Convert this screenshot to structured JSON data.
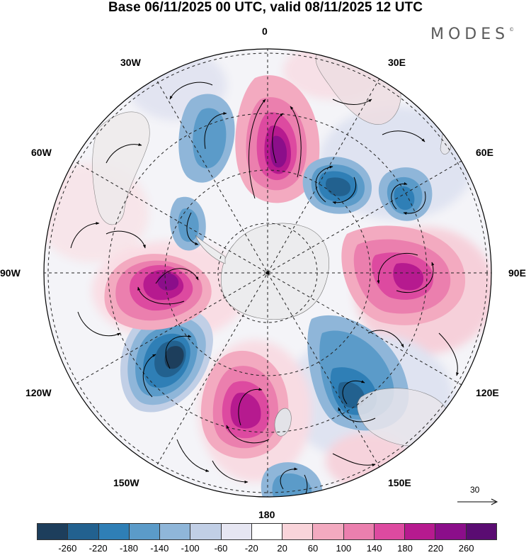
{
  "title": "Base 06/11/2025 00 UTC, valid 08/11/2025 12 UTC",
  "logo": {
    "text": "MODES",
    "mark": "©"
  },
  "longitude_labels": {
    "n0": "0",
    "n30e": "30E",
    "n60e": "60E",
    "e90": "90E",
    "n120e": "120E",
    "n150e": "150E",
    "s180": "180",
    "n150w": "150W",
    "n120w": "120W",
    "w90": "90W",
    "n60w": "60W",
    "n30w": "30W"
  },
  "reference_vector": {
    "label": "30"
  },
  "colorbar": {
    "colors": [
      "#1d3e5c",
      "#22618f",
      "#2f7fb6",
      "#5b9bc9",
      "#8fb6d9",
      "#c1cfe6",
      "#e6e6f2",
      "#ffffff",
      "#f9d4da",
      "#f3aac0",
      "#eb7fae",
      "#dd4aa0",
      "#b61a8f",
      "#8b0e8a",
      "#5a0c72"
    ],
    "tick_labels": [
      "-260",
      "-220",
      "-180",
      "-140",
      "-100",
      "-60",
      "-20",
      "20",
      "60",
      "100",
      "140",
      "180",
      "220",
      "260"
    ]
  },
  "map": {
    "projection": "south polar stereographic",
    "field": "geopotential height anomaly with wind vectors",
    "anomaly_centers": [
      {
        "name": "south-atlantic-positive",
        "value": 250
      },
      {
        "name": "indian-negative-1",
        "value": -230
      },
      {
        "name": "indian-negative-2",
        "value": -170
      },
      {
        "name": "indian-positive",
        "value": 190
      },
      {
        "name": "australia-negative",
        "value": -200
      },
      {
        "name": "pacific-positive",
        "value": 210
      },
      {
        "name": "pacific-negative",
        "value": -240
      },
      {
        "name": "bellingshausen-positive",
        "value": 230
      },
      {
        "name": "drake-negative",
        "value": -150
      },
      {
        "name": "south-pacific-negative",
        "value": -170
      }
    ]
  }
}
